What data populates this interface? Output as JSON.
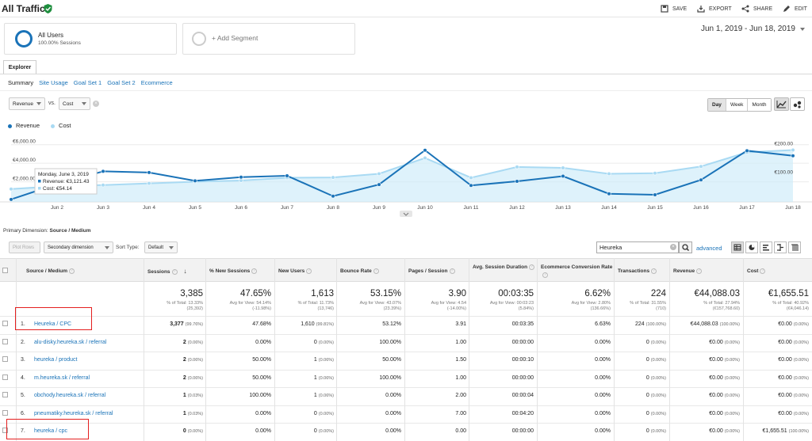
{
  "header": {
    "title": "All Traffic",
    "actions": [
      "SAVE",
      "EXPORT",
      "SHARE",
      "EDIT"
    ]
  },
  "segments": {
    "active_name": "All Users",
    "active_sub": "100.00% Sessions",
    "add_label": "+ Add Segment"
  },
  "date_range": "Jun 1, 2019 - Jun 18, 2019",
  "explorer_tab": "Explorer",
  "subtabs": [
    "Summary",
    "Site Usage",
    "Goal Set 1",
    "Goal Set 2",
    "Ecommerce"
  ],
  "metric_selector": {
    "primary": "Revenue",
    "vs_label": "vs.",
    "secondary": "Cost"
  },
  "granularity": [
    "Day",
    "Week",
    "Month"
  ],
  "legend": {
    "revenue": "Revenue",
    "cost": "Cost",
    "revenue_color": "#1a73b8",
    "cost_color": "#a9daf3"
  },
  "chart_data": {
    "type": "line",
    "x": [
      "Jun 1",
      "Jun 2",
      "Jun 3",
      "Jun 4",
      "Jun 5",
      "Jun 6",
      "Jun 7",
      "Jun 8",
      "Jun 9",
      "Jun 10",
      "Jun 11",
      "Jun 12",
      "Jun 13",
      "Jun 14",
      "Jun 15",
      "Jun 16",
      "Jun 17",
      "Jun 18"
    ],
    "x_tick_labels": [
      "Jun 2",
      "Jun 3",
      "Jun 4",
      "Jun 5",
      "Jun 6",
      "Jun 7",
      "Jun 8",
      "Jun 9",
      "Jun 10",
      "Jun 11",
      "Jun 12",
      "Jun 13",
      "Jun 14",
      "Jun 15",
      "Jun 16",
      "Jun 17",
      "Jun 18"
    ],
    "left_ticks": [
      "€6,000.00",
      "€4,000.00",
      "€2,000.00"
    ],
    "right_ticks": [
      "€200.00",
      "€100.00"
    ],
    "left_ylim": [
      0,
      7000
    ],
    "right_ylim": [
      0,
      230
    ],
    "series": [
      {
        "name": "Revenue",
        "axis": "left",
        "values": [
          100,
          1750,
          3121.43,
          3000,
          2100,
          2500,
          2650,
          450,
          1700,
          5400,
          1600,
          2050,
          2600,
          700,
          600,
          2200,
          5350,
          4800
        ]
      },
      {
        "name": "Cost",
        "axis": "right",
        "values": [
          40,
          50,
          54.14,
          60,
          66,
          70,
          80,
          81,
          94,
          150,
          80,
          118,
          115,
          94,
          96,
          120,
          170,
          178
        ]
      }
    ],
    "tooltip": {
      "date": "Monday, June 3, 2019",
      "revenue": "Revenue: €3,121.43",
      "cost": "Cost: €54.14"
    }
  },
  "primary_dimension": {
    "label": "Primary Dimension:",
    "value": "Source / Medium"
  },
  "table_toolbar": {
    "plot_rows": "Plot Rows",
    "secondary_dimension": "Secondary dimension",
    "sort_type_label": "Sort Type:",
    "sort_type_value": "Default",
    "search_value": "Heureka",
    "advanced": "advanced"
  },
  "table": {
    "columns": [
      "Source / Medium",
      "Sessions",
      "% New Sessions",
      "New Users",
      "Bounce Rate",
      "Pages / Session",
      "Avg. Session Duration",
      "Ecommerce Conversion Rate",
      "Transactions",
      "Revenue",
      "Cost"
    ],
    "totals": [
      {
        "main": "3,385",
        "sub1": "% of Total: 13.33%",
        "sub2": "(25,392)"
      },
      {
        "main": "47.65%",
        "sub1": "Avg for View: 54.14%",
        "sub2": "(-11.98%)"
      },
      {
        "main": "1,613",
        "sub1": "% of Total: 11.73%",
        "sub2": "(13,746)"
      },
      {
        "main": "53.15%",
        "sub1": "Avg for View: 43.07%",
        "sub2": "(23.39%)"
      },
      {
        "main": "3.90",
        "sub1": "Avg for View: 4.54",
        "sub2": "(-14.00%)"
      },
      {
        "main": "00:03:35",
        "sub1": "Avg for View: 00:03:23",
        "sub2": "(5.84%)"
      },
      {
        "main": "6.62%",
        "sub1": "Avg for View: 2.80%",
        "sub2": "(136.66%)"
      },
      {
        "main": "224",
        "sub1": "% of Total: 31.55%",
        "sub2": "(710)"
      },
      {
        "main": "€44,088.03",
        "sub1": "% of Total: 27.94%",
        "sub2": "(€157,768.60)"
      },
      {
        "main": "€1,655.51",
        "sub1": "% of Total: 40.92%",
        "sub2": "(€4,046.14)"
      }
    ],
    "rows": [
      {
        "idx": "1.",
        "name": "Heureka / CPC",
        "sessions": "3,377",
        "sessions_pct": "(99.76%)",
        "new_sessions": "47.68%",
        "new_users": "1,610",
        "new_users_pct": "(99.81%)",
        "bounce": "53.12%",
        "pages": "3.91",
        "duration": "00:03:35",
        "conv": "6.63%",
        "trans": "224",
        "trans_pct": "(100.00%)",
        "revenue": "€44,088.03",
        "revenue_pct": "(100.00%)",
        "cost": "€0.00",
        "cost_pct": "(0.00%)"
      },
      {
        "idx": "2.",
        "name": "alu-disky.heureka.sk / referral",
        "sessions": "2",
        "sessions_pct": "(0.06%)",
        "new_sessions": "0.00%",
        "new_users": "0",
        "new_users_pct": "(0.00%)",
        "bounce": "100.00%",
        "pages": "1.00",
        "duration": "00:00:00",
        "conv": "0.00%",
        "trans": "0",
        "trans_pct": "(0.00%)",
        "revenue": "€0.00",
        "revenue_pct": "(0.00%)",
        "cost": "€0.00",
        "cost_pct": "(0.00%)"
      },
      {
        "idx": "3.",
        "name": "heureka / product",
        "sessions": "2",
        "sessions_pct": "(0.06%)",
        "new_sessions": "50.00%",
        "new_users": "1",
        "new_users_pct": "(0.06%)",
        "bounce": "50.00%",
        "pages": "1.50",
        "duration": "00:00:10",
        "conv": "0.00%",
        "trans": "0",
        "trans_pct": "(0.00%)",
        "revenue": "€0.00",
        "revenue_pct": "(0.00%)",
        "cost": "€0.00",
        "cost_pct": "(0.00%)"
      },
      {
        "idx": "4.",
        "name": "m.heureka.sk / referral",
        "sessions": "2",
        "sessions_pct": "(0.06%)",
        "new_sessions": "50.00%",
        "new_users": "1",
        "new_users_pct": "(0.06%)",
        "bounce": "100.00%",
        "pages": "1.00",
        "duration": "00:00:00",
        "conv": "0.00%",
        "trans": "0",
        "trans_pct": "(0.00%)",
        "revenue": "€0.00",
        "revenue_pct": "(0.00%)",
        "cost": "€0.00",
        "cost_pct": "(0.00%)"
      },
      {
        "idx": "5.",
        "name": "obchody.heureka.sk / referral",
        "sessions": "1",
        "sessions_pct": "(0.03%)",
        "new_sessions": "100.00%",
        "new_users": "1",
        "new_users_pct": "(0.06%)",
        "bounce": "0.00%",
        "pages": "2.00",
        "duration": "00:00:04",
        "conv": "0.00%",
        "trans": "0",
        "trans_pct": "(0.00%)",
        "revenue": "€0.00",
        "revenue_pct": "(0.00%)",
        "cost": "€0.00",
        "cost_pct": "(0.00%)"
      },
      {
        "idx": "6.",
        "name": "pneumatiky.heureka.sk / referral",
        "sessions": "1",
        "sessions_pct": "(0.03%)",
        "new_sessions": "0.00%",
        "new_users": "0",
        "new_users_pct": "(0.00%)",
        "bounce": "0.00%",
        "pages": "7.00",
        "duration": "00:04:20",
        "conv": "0.00%",
        "trans": "0",
        "trans_pct": "(0.00%)",
        "revenue": "€0.00",
        "revenue_pct": "(0.00%)",
        "cost": "€0.00",
        "cost_pct": "(0.00%)"
      },
      {
        "idx": "7.",
        "name": "heureka / cpc",
        "sessions": "0",
        "sessions_pct": "(0.00%)",
        "new_sessions": "0.00%",
        "new_users": "0",
        "new_users_pct": "(0.00%)",
        "bounce": "0.00%",
        "pages": "0.00",
        "duration": "00:00:00",
        "conv": "0.00%",
        "trans": "0",
        "trans_pct": "(0.00%)",
        "revenue": "€0.00",
        "revenue_pct": "(0.00%)",
        "cost": "€1,655.51",
        "cost_pct": "(100.00%)"
      }
    ]
  }
}
